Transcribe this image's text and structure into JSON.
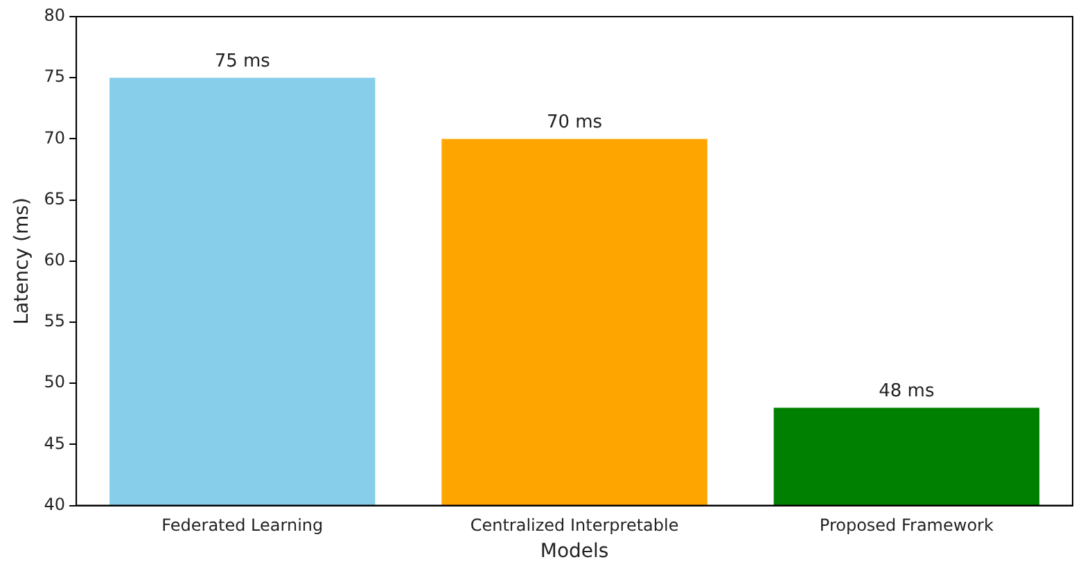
{
  "chart_data": {
    "type": "bar",
    "xlabel": "Models",
    "ylabel": "Latency (ms)",
    "categories": [
      "Federated Learning",
      "Centralized Interpretable",
      "Proposed Framework"
    ],
    "values": [
      75,
      70,
      48
    ],
    "colors": [
      "#87ceeb",
      "#ffa500",
      "#008000"
    ],
    "value_labels": [
      "75 ms",
      "70 ms",
      "48 ms"
    ],
    "ylim": [
      40,
      80
    ],
    "yticks": [
      40,
      45,
      50,
      55,
      60,
      65,
      70,
      75,
      80
    ],
    "grid": false,
    "legend": false
  }
}
